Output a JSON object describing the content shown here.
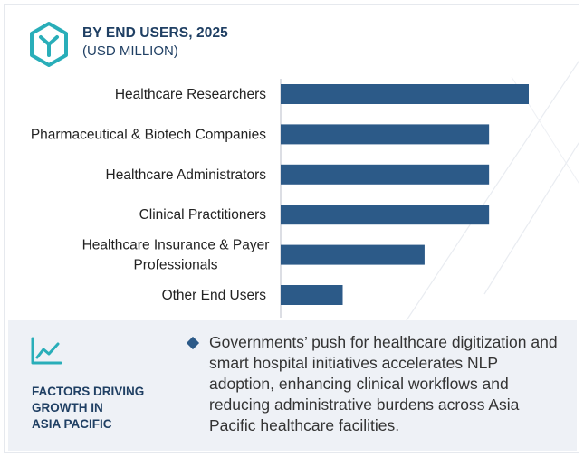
{
  "header": {
    "title": "BY END USERS, 2025",
    "subtitle": "(USD MILLION)"
  },
  "icons": {
    "logo": "hexagon-y-logo-icon",
    "factor": "trend-line-chart-icon",
    "bullet": "diamond-bullet-icon"
  },
  "colors": {
    "bar": "#2c5a88",
    "heading": "#1f3f63",
    "accent": "#29aeb9",
    "panel": "#eef1f6"
  },
  "chart_data": {
    "type": "bar",
    "orientation": "horizontal",
    "categories": [
      "Healthcare Researchers",
      "Pharmaceutical & Biotech Companies",
      "Healthcare Administrators",
      "Clinical Practitioners",
      "Healthcare Insurance & Payer Professionals",
      "Other End Users"
    ],
    "category_lines": [
      [
        "Healthcare Researchers"
      ],
      [
        "Pharmaceutical & Biotech Companies"
      ],
      [
        "Healthcare Administrators"
      ],
      [
        "Clinical Practitioners"
      ],
      [
        "Healthcare Insurance & Payer",
        "Professionals"
      ],
      [
        "Other End Users"
      ]
    ],
    "values": [
      100,
      84,
      84,
      84,
      58,
      25
    ],
    "value_scale": "relative (no numeric axis shown)",
    "xlim": [
      0,
      100
    ],
    "grid": false,
    "legend": "none"
  },
  "factors": {
    "title_lines": [
      "FACTORS DRIVING",
      "GROWTH IN",
      "ASIA PACIFIC"
    ],
    "text": "Governments’ push for healthcare digitization and smart hospital initiatives accelerates NLP adoption, enhancing clinical workflows and reducing administrative burdens across Asia Pacific healthcare facilities."
  }
}
